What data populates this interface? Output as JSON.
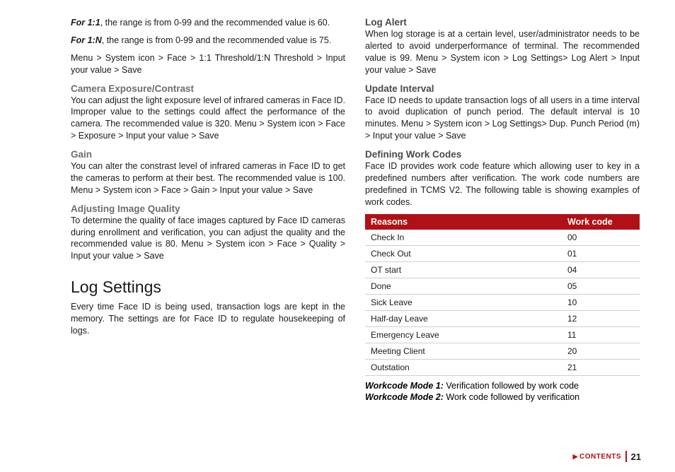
{
  "left": {
    "for11_label": "For 1:1",
    "for11_text": ", the range is from 0-99 and the recommended value is 60.",
    "for1n_label": "For 1:N",
    "for1n_text": ", the range is from 0-99 and the recommended value is 75.",
    "threshold_path": "Menu > System icon > Face > 1:1 Threshold/1:N Threshold > Input your value > Save",
    "camera_h": "Camera Exposure/Contrast",
    "camera_p": "You can adjust the light exposure level of infrared cameras in Face ID. Improper value to the settings could affect the performance of the camera. The recommended value is 320. Menu > System icon > Face > Exposure > Input your value > Save",
    "gain_h": "Gain",
    "gain_p": "You can alter the constrast level of infrared cameras in Face ID to get the cameras to perform at their best. The recommended value is 100. Menu > System icon > Face > Gain > Input your value > Save",
    "quality_h": "Adjusting Image Quality",
    "quality_p": "To determine the quality of face images captured by Face ID cameras during enrollment and verification, you can adjust the quality and the recommended value is 80. Menu > System icon > Face > Quality > Input your value > Save",
    "log_title": "Log Settings",
    "log_intro": "Every time Face ID is being used, transaction logs are kept in the memory. The settings are for Face ID to regulate housekeeping of logs."
  },
  "right": {
    "alert_h": "Log Alert",
    "alert_p": "When log storage is at a certain level, user/administrator needs to be alerted to avoid underperformance of terminal. The recommended value is 99. Menu > System icon > Log Settings> Log Alert > Input your value > Save",
    "update_h": "Update Interval",
    "update_p": "Face ID needs to update transaction logs of all users in a time interval to avoid duplication of punch period. The default interval is 10 minutes. Menu > System icon > Log Settings> Dup. Punch Period (m) > Input your value > Save",
    "codes_h": "Defining Work Codes",
    "codes_p": "Face ID provides work code feature which allowing user to key in a predefined numbers after verification. The work code numbers are predefined in TCMS V2. The following table is showing examples of work codes.",
    "table": {
      "header_reason": "Reasons",
      "header_code": "Work code",
      "rows": [
        {
          "r": "Check In",
          "c": "00"
        },
        {
          "r": "Check Out",
          "c": "01"
        },
        {
          "r": "OT start",
          "c": "04"
        },
        {
          "r": "Done",
          "c": "05"
        },
        {
          "r": "Sick Leave",
          "c": "10"
        },
        {
          "r": "Half-day Leave",
          "c": "12"
        },
        {
          "r": "Emergency Leave",
          "c": "11"
        },
        {
          "r": "Meeting Client",
          "c": "20"
        },
        {
          "r": "Outstation",
          "c": "21"
        }
      ]
    },
    "mode1_label": "Workcode Mode 1:",
    "mode1_text": " Verification followed by work code",
    "mode2_label": "Workcode Mode 2:",
    "mode2_text": " Work code followed by verification"
  },
  "footer": {
    "contents": "CONTENTS",
    "page": "21"
  },
  "colors": {
    "accent": "#b11116",
    "subhead": "#6e6e6e"
  }
}
